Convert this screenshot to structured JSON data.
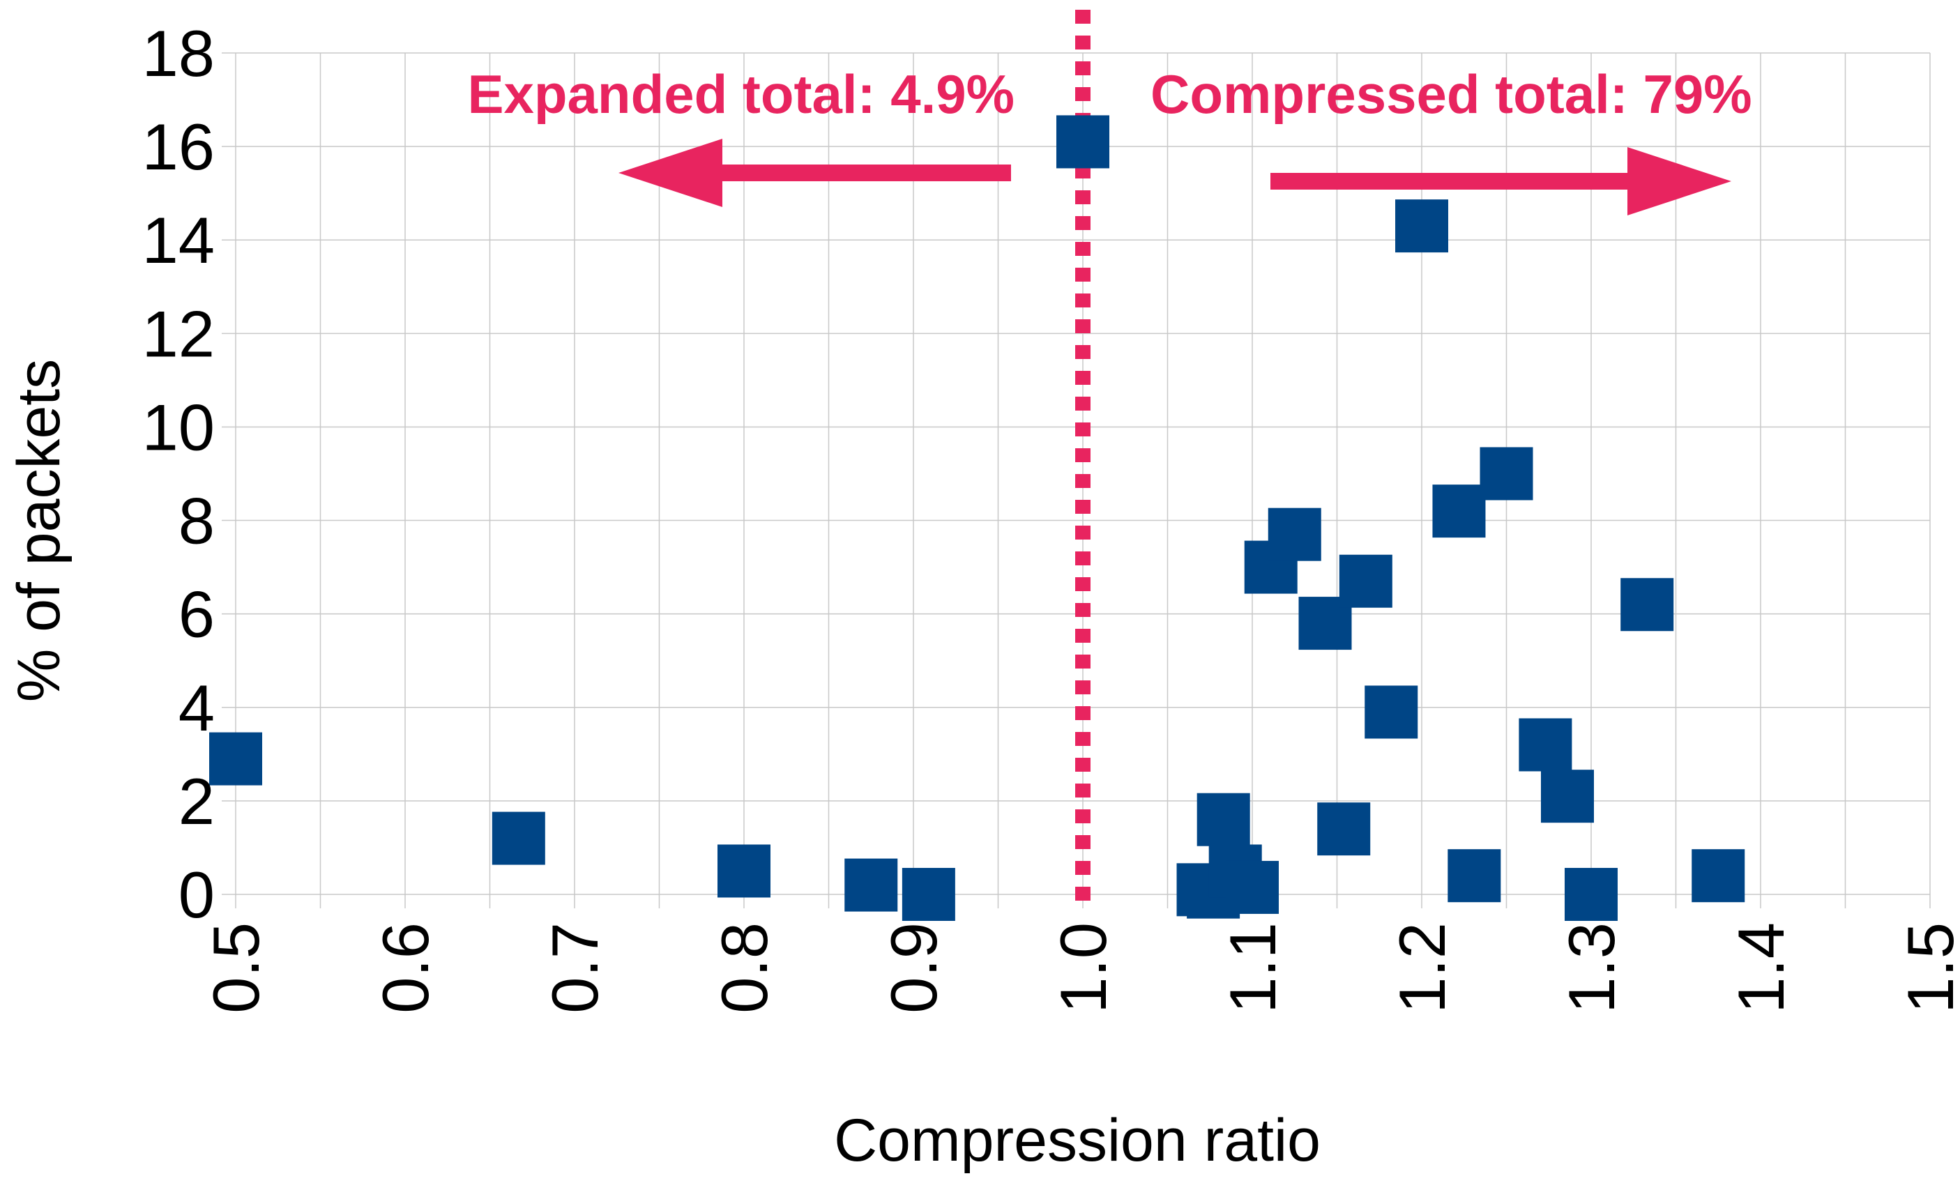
{
  "chart_data": {
    "type": "scatter",
    "xlabel": "Compression ratio",
    "ylabel": "% of packets",
    "xlim": [
      0.5,
      1.5
    ],
    "ylim": [
      0,
      18
    ],
    "x_ticks": [
      "0.5",
      "0.6",
      "0.7",
      "0.8",
      "0.9",
      "1.0",
      "1.1",
      "1.2",
      "1.3",
      "1.4",
      "1.5"
    ],
    "y_ticks": [
      "0",
      "2",
      "4",
      "6",
      "8",
      "10",
      "12",
      "14",
      "16",
      "18"
    ],
    "grid": true,
    "marker": "square",
    "marker_color": "#004586",
    "reference_line": {
      "x": 1.0,
      "style": "dotted",
      "color": "#e8245f"
    },
    "annotations": [
      {
        "text": "Expanded total: 4.9%",
        "side": "left",
        "arrow": "left",
        "color": "#e8245f"
      },
      {
        "text": "Compressed total: 79%",
        "side": "right",
        "arrow": "right",
        "color": "#e8245f"
      }
    ],
    "series": [
      {
        "points": [
          {
            "x": 0.5,
            "y": 2.9
          },
          {
            "x": 0.667,
            "y": 1.2
          },
          {
            "x": 0.8,
            "y": 0.5
          },
          {
            "x": 0.875,
            "y": 0.2
          },
          {
            "x": 0.909,
            "y": 0.0
          },
          {
            "x": 1.0,
            "y": 16.1
          },
          {
            "x": 1.071,
            "y": 0.1
          },
          {
            "x": 1.077,
            "y": 0.05
          },
          {
            "x": 1.083,
            "y": 1.6
          },
          {
            "x": 1.09,
            "y": 0.5
          },
          {
            "x": 1.1,
            "y": 0.15
          },
          {
            "x": 1.111,
            "y": 7.0
          },
          {
            "x": 1.125,
            "y": 7.7
          },
          {
            "x": 1.143,
            "y": 5.8
          },
          {
            "x": 1.154,
            "y": 1.4
          },
          {
            "x": 1.167,
            "y": 6.7
          },
          {
            "x": 1.182,
            "y": 3.9
          },
          {
            "x": 1.2,
            "y": 14.3
          },
          {
            "x": 1.222,
            "y": 8.2
          },
          {
            "x": 1.231,
            "y": 0.4
          },
          {
            "x": 1.25,
            "y": 9.0
          },
          {
            "x": 1.273,
            "y": 3.2
          },
          {
            "x": 1.286,
            "y": 2.1
          },
          {
            "x": 1.3,
            "y": 0.0
          },
          {
            "x": 1.333,
            "y": 6.2
          },
          {
            "x": 1.375,
            "y": 0.4
          }
        ]
      }
    ]
  }
}
